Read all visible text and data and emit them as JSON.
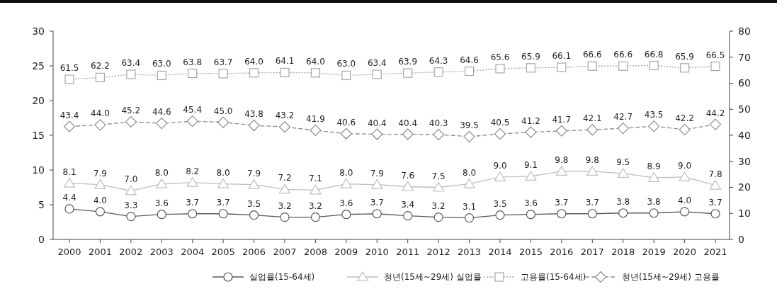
{
  "chart_data": {
    "type": "line",
    "categories": [
      "2000",
      "2001",
      "2002",
      "2003",
      "2004",
      "2005",
      "2006",
      "2007",
      "2008",
      "2009",
      "2010",
      "2011",
      "2012",
      "2013",
      "2014",
      "2015",
      "2016",
      "2017",
      "2018",
      "2019",
      "2020",
      "2021"
    ],
    "series": [
      {
        "name": "실업률(15-64세)",
        "color": "#595959",
        "marker": "circle",
        "line_style": "solid",
        "values": [
          4.4,
          4.0,
          3.3,
          3.6,
          3.7,
          3.7,
          3.5,
          3.2,
          3.2,
          3.6,
          3.7,
          3.4,
          3.2,
          3.1,
          3.5,
          3.6,
          3.7,
          3.7,
          3.8,
          3.8,
          4.0,
          3.7
        ],
        "value_labels": [
          "4.4",
          "4.0",
          "3.3",
          "3.6",
          "3.7",
          "3.7",
          "3.5",
          "3.2",
          "3.2",
          "3.6",
          "3.7",
          "3.4",
          "3.2",
          "3.1",
          "3.5",
          "3.6",
          "3.7",
          "3.7",
          "3.8",
          "3.8",
          "4.0",
          "3.7"
        ]
      },
      {
        "name": "청년(15세~29세) 실업률",
        "color": "#bfbfbf",
        "marker": "triangle",
        "line_style": "solid",
        "values": [
          8.1,
          7.9,
          7.0,
          8.0,
          8.2,
          8.0,
          7.9,
          7.2,
          7.1,
          8.0,
          7.9,
          7.6,
          7.5,
          8.0,
          9.0,
          9.1,
          9.8,
          9.8,
          9.5,
          8.9,
          9.0,
          7.8
        ],
        "value_labels": [
          "8.1",
          "7.9",
          "7.0",
          "8.0",
          "8.2",
          "8.0",
          "7.9",
          "7.2",
          "7.1",
          "8.0",
          "7.9",
          "7.6",
          "7.5",
          "8.0",
          "9.0",
          "9.1",
          "9.8",
          "9.8",
          "9.5",
          "8.9",
          "9.0",
          "7.8"
        ]
      },
      {
        "name": "고용률(15-64세)",
        "color": "#a6a6a6",
        "marker": "square",
        "line_style": "dotted",
        "axis": "y2",
        "values": [
          61.5,
          62.2,
          63.4,
          63.0,
          63.8,
          63.7,
          64.0,
          64.1,
          64.0,
          63.0,
          63.4,
          63.9,
          64.3,
          64.6,
          65.6,
          65.9,
          66.1,
          66.6,
          66.6,
          66.8,
          65.9,
          66.5
        ],
        "value_labels": [
          "61.5",
          "62.2",
          "63.4",
          "63.0",
          "63.8",
          "63.7",
          "64.0",
          "64.1",
          "64.0",
          "63.0",
          "63.4",
          "63.9",
          "64.3",
          "64.6",
          "65.6",
          "65.9",
          "66.1",
          "66.6",
          "66.6",
          "66.8",
          "65.9",
          "66.5"
        ]
      },
      {
        "name": "청년(15세~29세) 고용률",
        "color": "#8c8c8c",
        "marker": "diamond",
        "line_style": "dashed",
        "axis": "y2",
        "values": [
          43.4,
          44.0,
          45.2,
          44.6,
          45.4,
          45.0,
          43.8,
          43.2,
          41.9,
          40.6,
          40.4,
          40.4,
          40.3,
          39.5,
          40.5,
          41.2,
          41.7,
          42.1,
          42.7,
          43.5,
          42.2,
          44.2
        ],
        "value_labels": [
          "43.4",
          "44.0",
          "45.2",
          "44.6",
          "45.4",
          "45.0",
          "43.8",
          "43.2",
          "41.9",
          "40.6",
          "40.4",
          "40.4",
          "40.3",
          "39.5",
          "40.5",
          "41.2",
          "41.7",
          "42.1",
          "42.7",
          "43.5",
          "42.2",
          "44.2"
        ]
      }
    ],
    "ylim": [
      0,
      30
    ],
    "yticks": [
      0,
      5,
      10,
      15,
      20,
      25,
      30
    ],
    "y2lim": [
      0,
      80
    ],
    "y2ticks": [
      0,
      10,
      20,
      30,
      40,
      50,
      60,
      70,
      80
    ],
    "grid": false,
    "legend": "bottom"
  }
}
